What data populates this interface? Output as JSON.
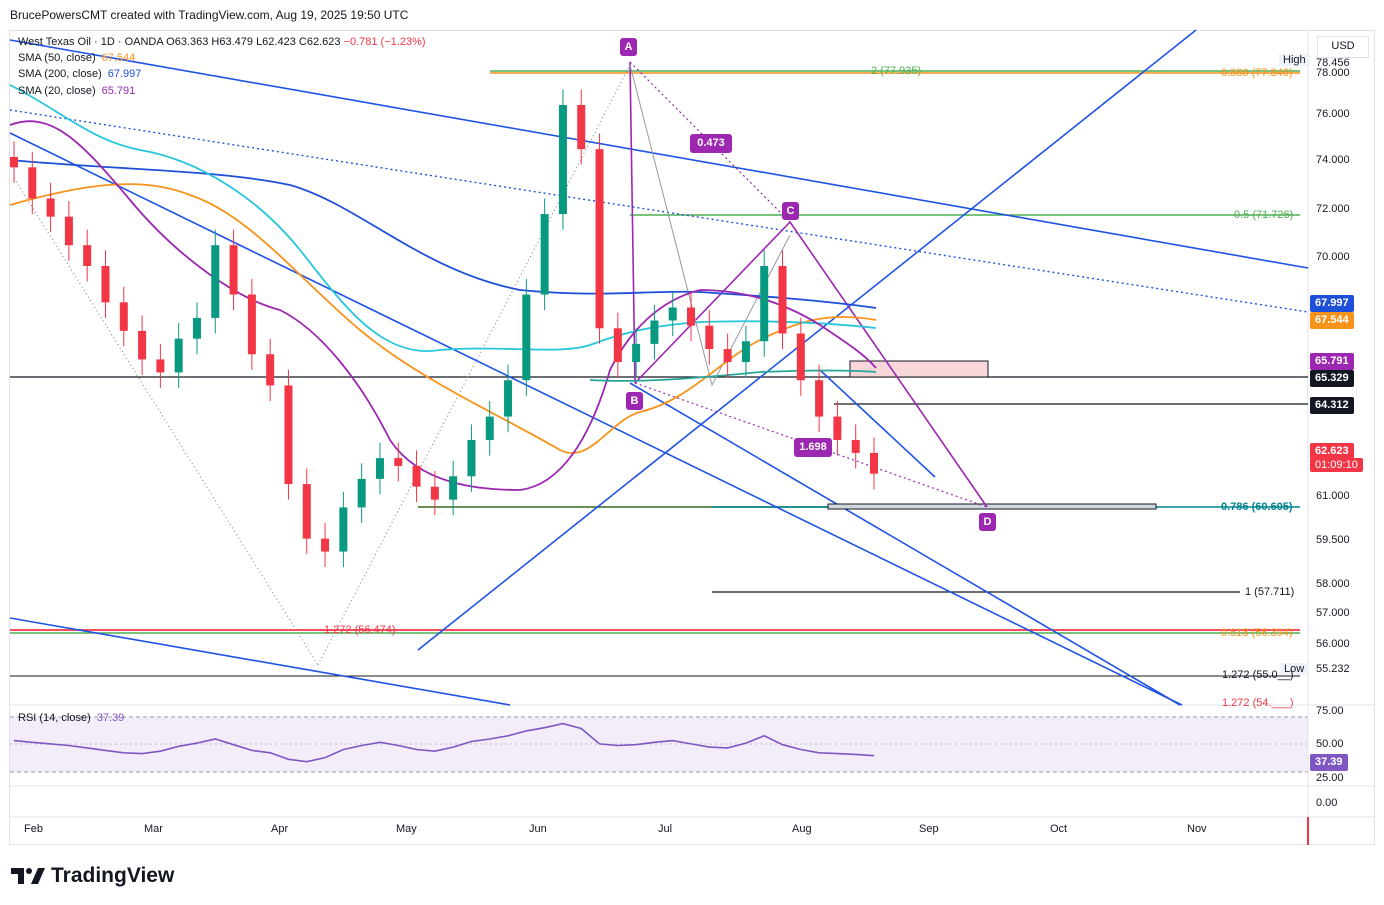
{
  "header": {
    "credit": "BrucePowersCMT created with TradingView.com, Aug 19, 2025 19:50 UTC"
  },
  "symbol": {
    "name": "West Texas Oil · 1D · OANDA",
    "open": "O63.363",
    "high": "H63.479",
    "low": "L62.423",
    "close": "C62.623",
    "change": "−0.781 (−1.23%)",
    "change_color": "#f23645"
  },
  "indicators": [
    {
      "label": "SMA (50, close)",
      "value": "67.544",
      "color": "#f7931a"
    },
    {
      "label": "SMA (200, close)",
      "value": "67.997",
      "color": "#1e4fd8"
    },
    {
      "label": "SMA (20, close)",
      "value": "65.791",
      "color": "#9c27b0"
    }
  ],
  "rsi_legend": {
    "label": "RSI (14, close)",
    "value": "37.39",
    "color": "#7e57c2"
  },
  "currency": "USD",
  "price_axis": {
    "ticks": [
      "78.456",
      "78.000",
      "76.000",
      "74.000",
      "72.000",
      "70.000",
      "61.000",
      "59.500",
      "58.000",
      "57.000",
      "56.000",
      "55.232"
    ],
    "high_label": "High",
    "low_label": "Low",
    "tags": [
      {
        "value": "67.997",
        "bg": "#1e4fd8"
      },
      {
        "value": "67.544",
        "bg": "#f7931a"
      },
      {
        "value": "65.791",
        "bg": "#9c27b0"
      },
      {
        "value": "65.329",
        "bg": "#131722"
      },
      {
        "value": "64.312",
        "bg": "#131722"
      },
      {
        "value": "62.623",
        "bg": "#f23645"
      },
      {
        "value": "01:09:10",
        "bg": "#f23645"
      }
    ]
  },
  "rsi_axis": {
    "ticks": [
      "75.00",
      "50.00",
      "25.00",
      "0.00"
    ],
    "tag": "37.39"
  },
  "time_axis": [
    "Feb",
    "Mar",
    "Apr",
    "May",
    "Jun",
    "Jul",
    "Aug",
    "Sep",
    "Oct",
    "Nov"
  ],
  "pattern_points": [
    "A",
    "B",
    "C",
    "D"
  ],
  "pattern_ratios": [
    "0.473",
    "1.698"
  ],
  "fib_labels": [
    {
      "text": "2 (77.935)",
      "color": "#4caf50"
    },
    {
      "text": "0.886 (77.846)",
      "color": "#f7931a"
    },
    {
      "text": "0.5 (71.726)",
      "color": "#4caf50"
    },
    {
      "text": "0.786 (60.605)",
      "color": "#00838f"
    },
    {
      "text": "1 (57.711)",
      "color": "#131722"
    },
    {
      "text": "1.272 (56.474)",
      "color": "#f23645"
    },
    {
      "text": "0.618 (56.394)",
      "color": "#f7931a"
    },
    {
      "text": "1.272 (55.0__)",
      "color": "#131722"
    },
    {
      "text": "1.272 (54.___)",
      "color": "#f23645"
    }
  ],
  "brand": "TradingView",
  "chart_data": {
    "type": "candlestick",
    "title": "West Texas Oil · 1D · OANDA",
    "x_ticks": [
      "Feb",
      "Mar",
      "Apr",
      "May",
      "Jun",
      "Jul",
      "Aug",
      "Sep",
      "Oct",
      "Nov"
    ],
    "ylim": [
      54.5,
      78.6
    ],
    "key_levels": [
      78.456,
      77.935,
      77.846,
      71.726,
      67.997,
      67.544,
      65.791,
      65.329,
      64.312,
      62.623,
      60.605,
      57.711,
      56.474,
      56.394,
      55.232
    ],
    "approx_closes": [
      74.4,
      73.2,
      72.5,
      71.4,
      70.6,
      69.2,
      68.1,
      67.0,
      66.5,
      67.8,
      68.6,
      71.4,
      69.5,
      67.2,
      66.0,
      62.2,
      60.1,
      59.6,
      61.3,
      62.4,
      63.2,
      62.9,
      62.1,
      61.6,
      62.5,
      63.9,
      64.8,
      66.2,
      69.5,
      72.6,
      76.8,
      75.1,
      68.2,
      66.9,
      67.6,
      68.5,
      69.0,
      68.3,
      67.4,
      66.9,
      67.7,
      70.6,
      68.0,
      66.2,
      64.8,
      63.9,
      63.4,
      62.6
    ],
    "harmonic_pattern": {
      "A": 78.456,
      "B": 65.329,
      "C": 71.726,
      "D": 60.605,
      "AB_ratio": 0.473,
      "CD_ratio": 1.698
    },
    "rsi": {
      "label": "RSI (14, close)",
      "last": 37.39,
      "ylim": [
        0,
        100
      ],
      "values": [
        56,
        54,
        52,
        50,
        47,
        44,
        41,
        40,
        43,
        49,
        53,
        58,
        51,
        44,
        41,
        33,
        30,
        35,
        45,
        50,
        54,
        50,
        45,
        43,
        48,
        55,
        58,
        62,
        68,
        72,
        77,
        71,
        52,
        50,
        51,
        54,
        56,
        52,
        48,
        47,
        53,
        62,
        51,
        45,
        41,
        40,
        39,
        37.39
      ]
    }
  }
}
